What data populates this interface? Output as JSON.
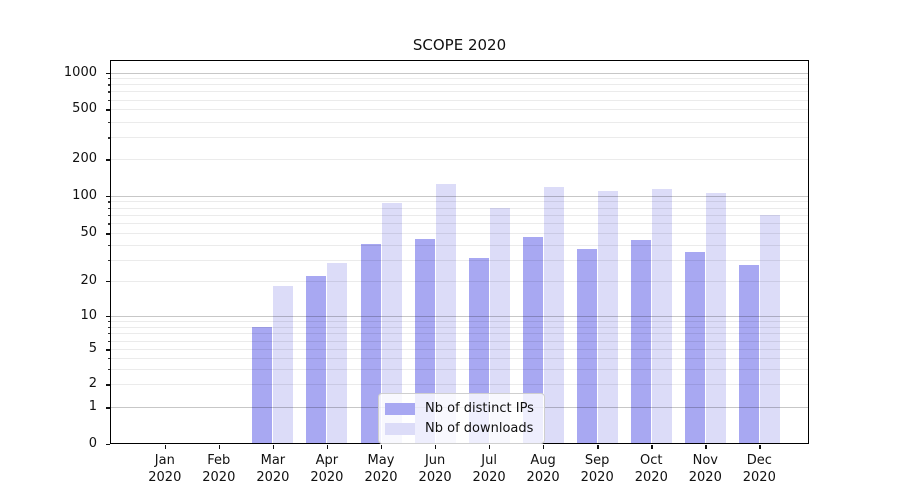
{
  "figure": {
    "title": "SCOPE 2020"
  },
  "chart_data": {
    "type": "bar",
    "title": "SCOPE 2020",
    "categories": [
      "Jan",
      "Feb",
      "Mar",
      "Apr",
      "May",
      "Jun",
      "Jul",
      "Aug",
      "Sep",
      "Oct",
      "Nov",
      "Dec"
    ],
    "year_label": "2020",
    "series": [
      {
        "name": "Nb of distinct IPs",
        "color": "#a8a8f2",
        "values": [
          0,
          0,
          8,
          22,
          41,
          45,
          31,
          47,
          37,
          44,
          35,
          27
        ]
      },
      {
        "name": "Nb of downloads",
        "color": "#dcdcf8",
        "values": [
          0,
          0,
          18,
          28,
          88,
          125,
          80,
          118,
          110,
          113,
          106,
          70
        ]
      }
    ],
    "y_ticks": [
      0,
      1,
      2,
      5,
      10,
      20,
      50,
      100,
      200,
      500,
      1000
    ],
    "y_scale": "log-like (compressed below 10, with 0 baseline)",
    "ylim": [
      0,
      1000
    ],
    "xlabel": "",
    "ylabel": "",
    "grid": true,
    "legend_position": "lower-center-inside"
  }
}
